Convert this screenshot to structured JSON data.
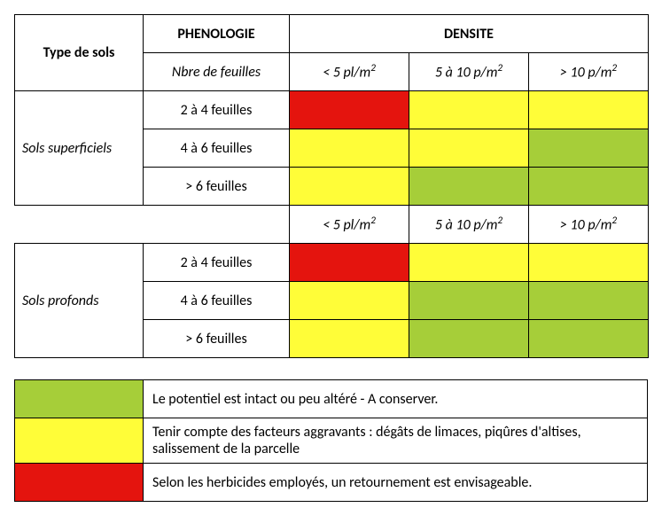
{
  "header": {
    "type_sols": "Type de sols",
    "phenologie": "PHENOLOGIE",
    "phenologie_sub": "Nbre de feuilles",
    "densite": "DENSITE",
    "d1": "< 5 pl/m²",
    "d2": "5 à 10 p/m²",
    "d3": "> 10  p/m²"
  },
  "colors": {
    "green": "#a6ce39",
    "yellow": "#fffd38",
    "red": "#e4140e",
    "border": "#000000",
    "bg": "#ffffff"
  },
  "sections": [
    {
      "title": "Sols superficiels",
      "rows": [
        {
          "pheno": "2 à 4 feuilles",
          "cells": [
            "red",
            "yellow",
            "yellow"
          ]
        },
        {
          "pheno": "4 à 6 feuilles",
          "cells": [
            "yellow",
            "yellow",
            "green"
          ]
        },
        {
          "pheno": "> 6  feuilles",
          "cells": [
            "yellow",
            "green",
            "green"
          ]
        }
      ]
    },
    {
      "title": "Sols profonds",
      "repeat_density_header": true,
      "rows": [
        {
          "pheno": "2 à 4 feuilles",
          "cells": [
            "red",
            "yellow",
            "yellow"
          ]
        },
        {
          "pheno": "4 à 6 feuilles",
          "cells": [
            "yellow",
            "green",
            "green"
          ]
        },
        {
          "pheno": "> 6  feuilles",
          "cells": [
            "yellow",
            "green",
            "green"
          ]
        }
      ]
    }
  ],
  "legend": [
    {
      "color": "green",
      "text": "Le potentiel est intact ou peu altéré - A conserver."
    },
    {
      "color": "yellow",
      "text": "Tenir compte des facteurs aggravants : dégâts de limaces, piqûres d'altises, salissement de la parcelle"
    },
    {
      "color": "red",
      "text": "Selon les herbicides employés, un retournement est envisageable."
    }
  ]
}
